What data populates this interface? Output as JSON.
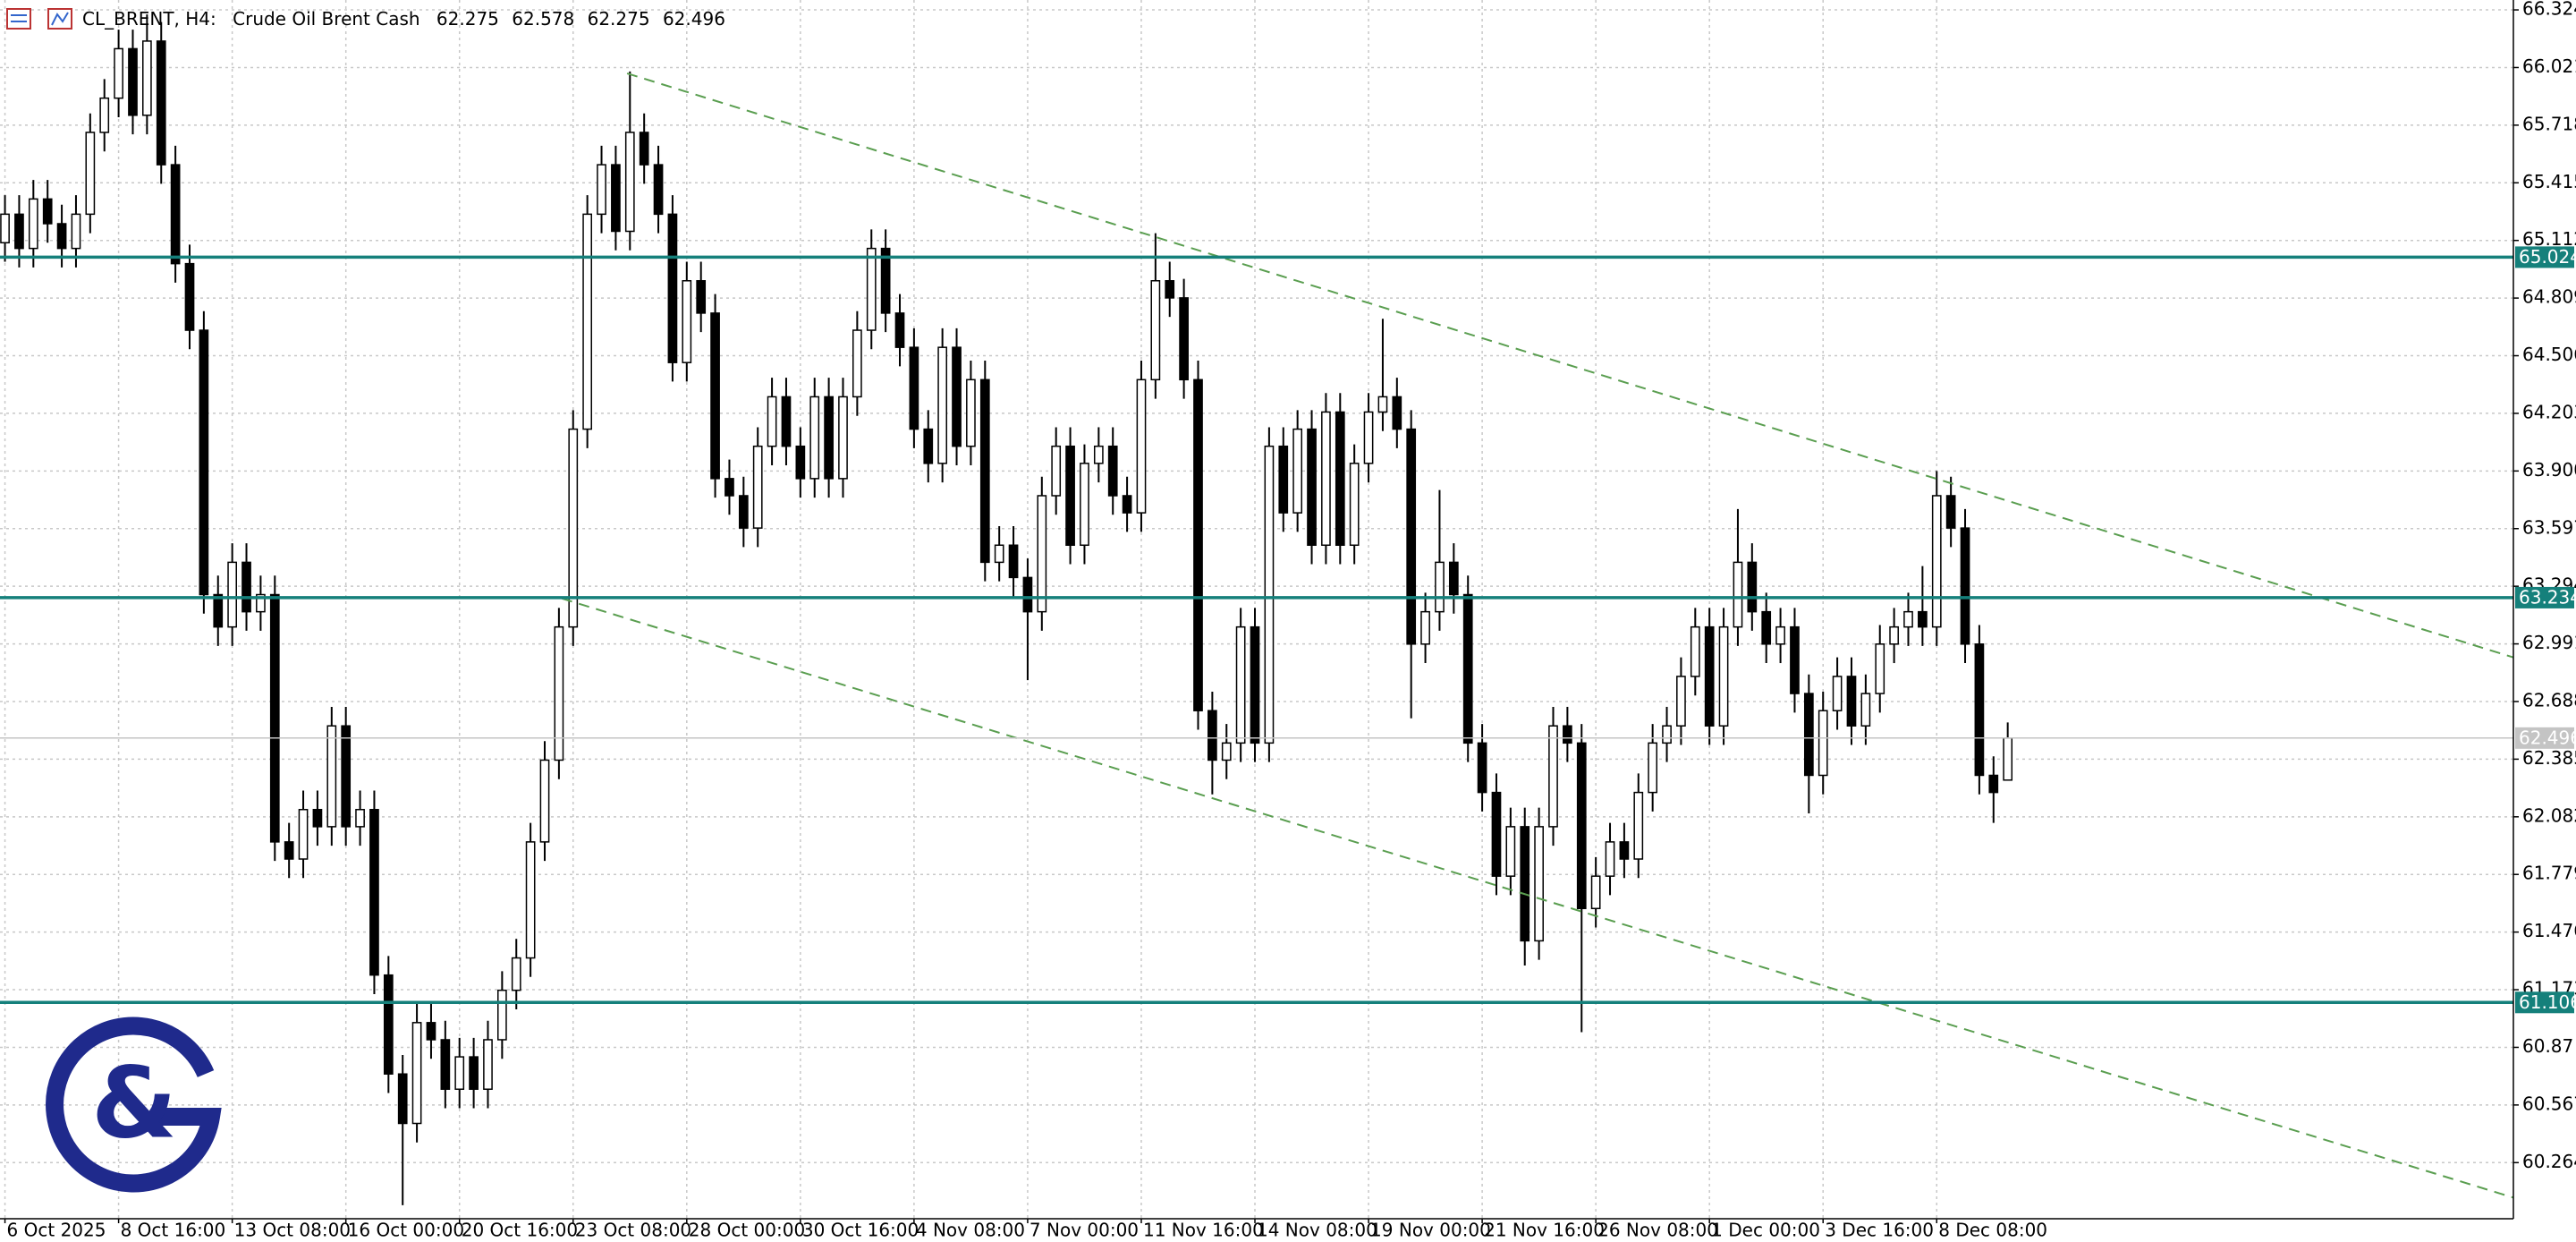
{
  "chart_data": {
    "type": "candlestick",
    "symbol": "CL_BRENT, H4:",
    "description": "Crude Oil Brent Cash",
    "categories": [
      "6 Oct 2025",
      null,
      null,
      null,
      null,
      null,
      null,
      null,
      "8 Oct 16:00",
      null,
      null,
      null,
      null,
      null,
      null,
      null,
      "13 Oct 08:00",
      null,
      null,
      null,
      null,
      null,
      null,
      null,
      "16 Oct 00:00",
      null,
      null,
      null,
      null,
      null,
      null,
      null,
      "20 Oct 16:00",
      null,
      null,
      null,
      null,
      null,
      null,
      null,
      "23 Oct 08:00",
      null,
      null,
      null,
      null,
      null,
      null,
      null,
      "28 Oct 00:00",
      null,
      null,
      null,
      null,
      null,
      null,
      null,
      "30 Oct 16:00",
      null,
      null,
      null,
      null,
      null,
      null,
      null,
      "4 Nov 08:00",
      null,
      null,
      null,
      null,
      null,
      null,
      null,
      "7 Nov 00:00",
      null,
      null,
      null,
      null,
      null,
      null,
      null,
      "11 Nov 16:00",
      null,
      null,
      null,
      null,
      null,
      null,
      null,
      "14 Nov 08:00",
      null,
      null,
      null,
      null,
      null,
      null,
      null,
      "19 Nov 00:00",
      null,
      null,
      null,
      null,
      null,
      null,
      null,
      "21 Nov 16:00",
      null,
      null,
      null,
      null,
      null,
      null,
      null,
      "26 Nov 08:00",
      null,
      null,
      null,
      null,
      null,
      null,
      null,
      "1 Dec 00:00",
      null,
      null,
      null,
      null,
      null,
      null,
      null,
      "3 Dec 16:00",
      null,
      null,
      null,
      null,
      null,
      null,
      null,
      "8 Dec 08:00",
      null,
      null,
      null,
      null,
      null
    ],
    "open": [
      65.1,
      65.25,
      65.07,
      65.33,
      65.2,
      65.07,
      65.25,
      65.68,
      65.86,
      66.12,
      65.77,
      66.16,
      65.51,
      64.99,
      64.64,
      63.25,
      63.08,
      63.42,
      63.16,
      63.25,
      61.95,
      61.86,
      62.12,
      62.03,
      62.56,
      62.03,
      62.12,
      61.25,
      60.73,
      60.47,
      61.0,
      60.91,
      60.65,
      60.82,
      60.65,
      60.91,
      61.17,
      61.34,
      61.95,
      62.38,
      63.08,
      64.12,
      65.25,
      65.51,
      65.16,
      65.68,
      65.51,
      65.25,
      64.47,
      64.9,
      64.73,
      63.86,
      63.77,
      63.6,
      64.03,
      64.29,
      64.03,
      63.86,
      64.29,
      63.86,
      64.29,
      64.64,
      65.07,
      64.73,
      64.55,
      64.12,
      63.94,
      64.55,
      64.03,
      64.38,
      63.42,
      63.51,
      63.34,
      63.16,
      63.77,
      64.03,
      63.51,
      63.94,
      64.03,
      63.77,
      63.68,
      64.38,
      64.9,
      64.81,
      64.38,
      62.64,
      62.38,
      62.47,
      63.08,
      62.47,
      64.03,
      63.68,
      64.12,
      63.51,
      64.21,
      63.51,
      63.94,
      64.21,
      64.29,
      64.12,
      62.99,
      63.16,
      63.42,
      63.25,
      62.47,
      62.21,
      61.77,
      62.03,
      61.43,
      62.03,
      62.56,
      62.47,
      61.6,
      61.77,
      61.95,
      61.86,
      62.21,
      62.47,
      62.56,
      62.82,
      63.08,
      62.56,
      63.08,
      63.42,
      63.16,
      62.99,
      63.08,
      62.73,
      62.3,
      62.64,
      62.82,
      62.56,
      62.73,
      62.99,
      63.08,
      63.16,
      63.08,
      63.77,
      63.6,
      62.99,
      62.3,
      62.275
    ],
    "high": [
      65.35,
      65.35,
      65.43,
      65.43,
      65.3,
      65.35,
      65.78,
      65.96,
      66.22,
      66.22,
      66.3,
      66.26,
      65.61,
      65.09,
      64.74,
      63.35,
      63.52,
      63.52,
      63.35,
      63.35,
      62.05,
      62.22,
      62.22,
      62.66,
      62.66,
      62.22,
      62.22,
      61.35,
      60.83,
      61.1,
      61.1,
      61.01,
      60.92,
      60.92,
      61.01,
      61.27,
      61.44,
      62.05,
      62.48,
      63.18,
      64.22,
      65.35,
      65.61,
      65.61,
      66.0,
      65.78,
      65.61,
      65.35,
      65.0,
      65.0,
      64.83,
      63.96,
      63.87,
      64.13,
      64.39,
      64.39,
      64.13,
      64.39,
      64.39,
      64.39,
      64.74,
      65.17,
      65.17,
      64.83,
      64.65,
      64.22,
      64.65,
      64.65,
      64.48,
      64.48,
      63.61,
      63.61,
      63.44,
      63.87,
      64.13,
      64.13,
      64.04,
      64.13,
      64.13,
      63.87,
      64.48,
      65.15,
      65.0,
      64.91,
      64.48,
      62.74,
      62.57,
      63.18,
      63.18,
      64.13,
      64.13,
      64.22,
      64.22,
      64.31,
      64.31,
      64.04,
      64.31,
      64.7,
      64.39,
      64.22,
      63.26,
      63.8,
      63.52,
      63.35,
      62.57,
      62.31,
      62.13,
      62.13,
      62.13,
      62.66,
      62.66,
      62.57,
      61.87,
      62.05,
      62.05,
      62.31,
      62.57,
      62.66,
      62.92,
      63.18,
      63.18,
      63.18,
      63.7,
      63.52,
      63.26,
      63.18,
      63.18,
      62.83,
      62.74,
      62.92,
      62.92,
      62.83,
      63.09,
      63.18,
      63.26,
      63.4,
      63.9,
      63.87,
      63.7,
      63.09,
      62.4,
      62.578
    ],
    "low": [
      65.0,
      64.97,
      64.97,
      65.1,
      64.97,
      64.97,
      65.15,
      65.58,
      65.76,
      65.67,
      65.67,
      65.41,
      64.89,
      64.54,
      63.15,
      62.98,
      62.98,
      63.06,
      63.06,
      61.85,
      61.76,
      61.76,
      61.93,
      61.93,
      61.93,
      61.93,
      61.15,
      60.63,
      60.04,
      60.37,
      60.81,
      60.55,
      60.55,
      60.55,
      60.55,
      60.81,
      61.07,
      61.24,
      61.85,
      62.28,
      62.98,
      64.02,
      65.15,
      65.06,
      65.06,
      65.41,
      65.15,
      64.37,
      64.37,
      64.63,
      63.76,
      63.67,
      63.5,
      63.5,
      63.93,
      63.93,
      63.76,
      63.76,
      63.76,
      63.76,
      64.19,
      64.54,
      64.63,
      64.45,
      64.02,
      63.84,
      63.84,
      63.93,
      63.93,
      63.32,
      63.32,
      63.24,
      62.8,
      63.06,
      63.67,
      63.41,
      63.41,
      63.84,
      63.67,
      63.58,
      63.58,
      64.28,
      64.71,
      64.28,
      62.54,
      62.2,
      62.28,
      62.37,
      62.37,
      62.37,
      63.58,
      63.58,
      63.41,
      63.41,
      63.41,
      63.41,
      63.84,
      64.11,
      64.02,
      62.6,
      62.89,
      63.06,
      63.15,
      62.37,
      62.11,
      61.67,
      61.67,
      61.3,
      61.33,
      61.93,
      62.37,
      60.95,
      61.5,
      61.67,
      61.76,
      61.76,
      62.11,
      62.37,
      62.46,
      62.72,
      62.46,
      62.46,
      62.98,
      63.06,
      62.89,
      62.89,
      62.63,
      62.1,
      62.2,
      62.54,
      62.46,
      62.46,
      62.63,
      62.89,
      62.98,
      62.98,
      62.98,
      63.5,
      62.89,
      62.2,
      62.05,
      62.275
    ],
    "close": [
      65.25,
      65.07,
      65.33,
      65.2,
      65.07,
      65.25,
      65.68,
      65.86,
      66.12,
      65.77,
      66.16,
      65.51,
      64.99,
      64.64,
      63.25,
      63.08,
      63.42,
      63.16,
      63.25,
      61.95,
      61.86,
      62.12,
      62.03,
      62.56,
      62.03,
      62.12,
      61.25,
      60.73,
      60.47,
      61.0,
      60.91,
      60.65,
      60.82,
      60.65,
      60.91,
      61.17,
      61.34,
      61.95,
      62.38,
      63.08,
      64.12,
      65.25,
      65.51,
      65.16,
      65.68,
      65.51,
      65.25,
      64.47,
      64.9,
      64.73,
      63.86,
      63.77,
      63.6,
      64.03,
      64.29,
      64.03,
      63.86,
      64.29,
      63.86,
      64.29,
      64.64,
      65.07,
      64.73,
      64.55,
      64.12,
      63.94,
      64.55,
      64.03,
      64.38,
      63.42,
      63.51,
      63.34,
      63.16,
      63.77,
      64.03,
      63.51,
      63.94,
      64.03,
      63.77,
      63.68,
      64.38,
      64.9,
      64.81,
      64.38,
      62.64,
      62.38,
      62.47,
      63.08,
      62.47,
      64.03,
      63.68,
      64.12,
      63.51,
      64.21,
      63.51,
      63.94,
      64.21,
      64.29,
      64.12,
      62.99,
      63.16,
      63.42,
      63.25,
      62.47,
      62.21,
      61.77,
      62.03,
      61.43,
      62.03,
      62.56,
      62.47,
      61.6,
      61.77,
      61.95,
      61.86,
      62.21,
      62.47,
      62.56,
      62.82,
      63.08,
      62.56,
      63.08,
      63.42,
      63.16,
      62.99,
      63.08,
      62.73,
      62.3,
      62.64,
      62.82,
      62.56,
      62.73,
      62.99,
      63.08,
      63.16,
      63.08,
      63.77,
      63.6,
      62.99,
      62.3,
      62.21,
      62.496
    ],
    "xlim": [
      -0.35,
      176.6
    ],
    "ylim": [
      59.969,
      66.376
    ],
    "yticks": [
      66.324,
      66.021,
      65.718,
      65.415,
      65.112,
      64.809,
      64.506,
      64.203,
      {
        "value": 63.9,
        "label": "63.900"
      },
      63.597,
      63.294,
      62.991,
      62.688,
      62.385,
      62.082,
      61.779,
      61.476,
      61.173,
      60.87,
      60.567,
      60.264
    ],
    "grid": true,
    "up_color": "#ffffff",
    "down_color": "#000000",
    "wick_color": "#000000",
    "levels": [
      65.024,
      63.234,
      61.106
    ],
    "level_color": "#15807b",
    "price_color": "#c4c4c4",
    "trendlines": [
      {
        "x": [
          43.8,
          176.6
        ],
        "y": [
          65.99,
          62.92
        ]
      },
      {
        "x": [
          39.2,
          176.6
        ],
        "y": [
          63.23,
          60.08
        ]
      }
    ],
    "trendline_color": "#5a9e50",
    "logo": "&"
  }
}
